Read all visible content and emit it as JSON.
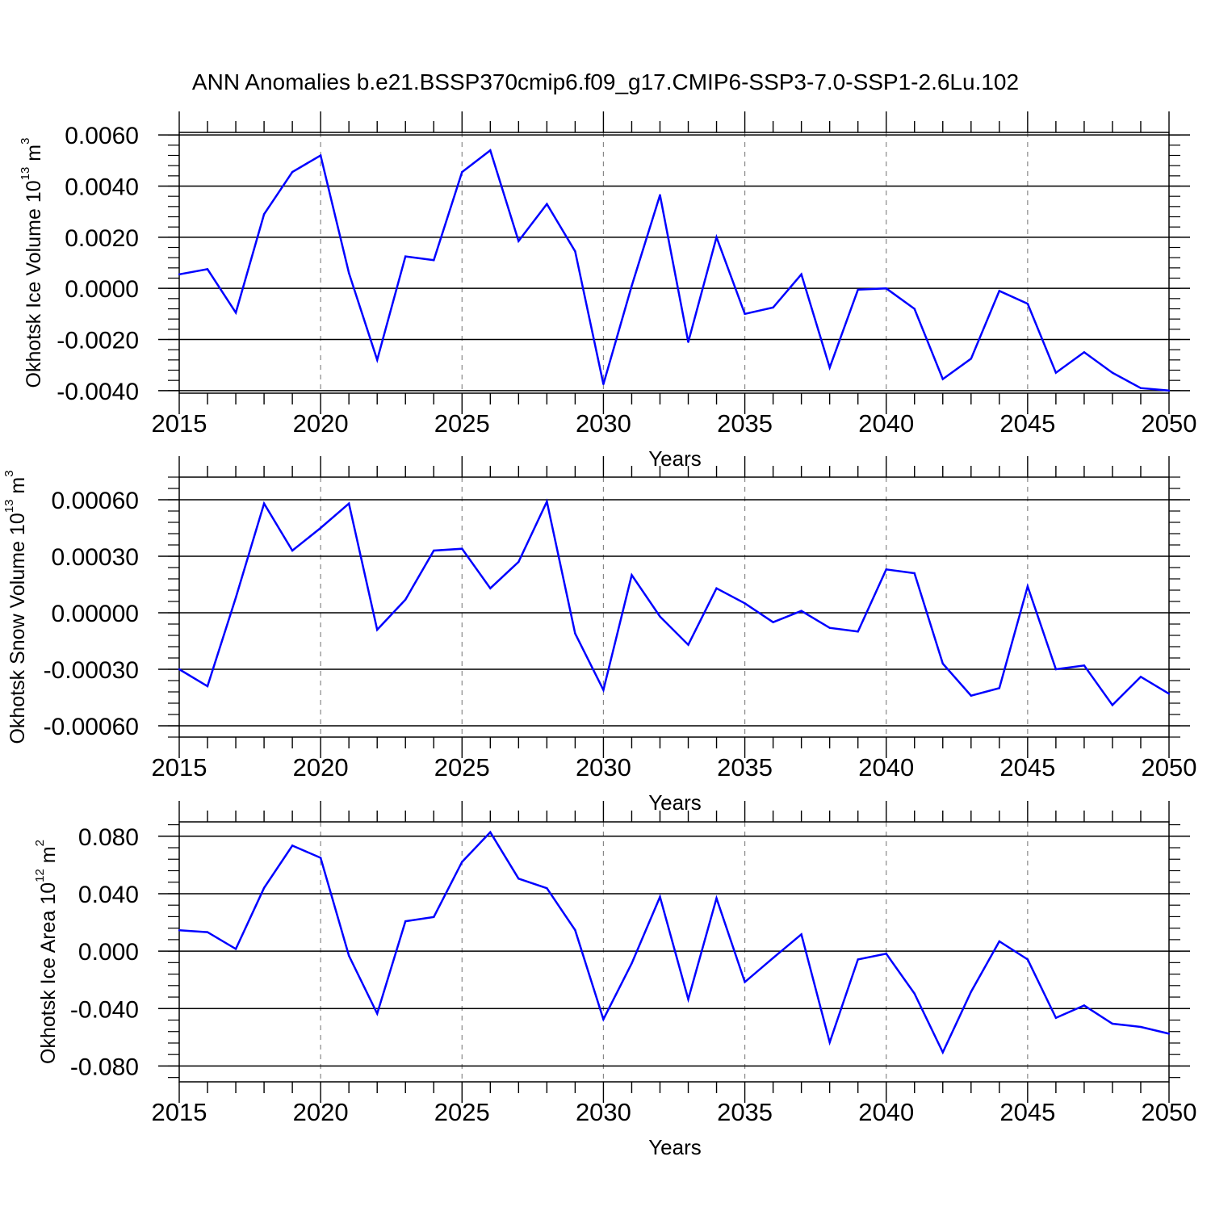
{
  "title": "ANN Anomalies b.e21.BSSP370cmip6.f09_g17.CMIP6-SSP3-7.0-SSP1-2.6Lu.102",
  "chart_data": [
    {
      "type": "line",
      "ylabel": "Okhotsk Ice Volume 10",
      "ylabel_exp": "13",
      "ylabel_unit": " m",
      "ylabel_unit_exp": "3",
      "xlabel": "Years",
      "xlim": [
        2015,
        2050
      ],
      "ylim": [
        -0.0041,
        0.0061
      ],
      "yticks": [
        0.006,
        0.004,
        0.002,
        0.0,
        -0.002,
        -0.004
      ],
      "ytick_labels": [
        "0.0060",
        "0.0040",
        "0.0020",
        "0.0000",
        "-0.0020",
        "-0.0040"
      ],
      "xticks": [
        2015,
        2020,
        2025,
        2030,
        2035,
        2040,
        2045,
        2050
      ],
      "xtick_labels": [
        "2015",
        "2020",
        "2025",
        "2030",
        "2035",
        "2040",
        "2045",
        "2050"
      ],
      "line_color": "#0000ff",
      "x": [
        2015,
        2016,
        2017,
        2018,
        2019,
        2020,
        2021,
        2022,
        2023,
        2024,
        2025,
        2026,
        2027,
        2028,
        2029,
        2030,
        2031,
        2032,
        2033,
        2034,
        2035,
        2036,
        2037,
        2038,
        2039,
        2040,
        2041,
        2042,
        2043,
        2044,
        2045,
        2046,
        2047,
        2048,
        2049,
        2050
      ],
      "values": [
        0.00055,
        0.00075,
        -0.00095,
        0.0029,
        0.00455,
        0.0052,
        0.0006,
        -0.0028,
        0.00125,
        0.0011,
        0.00455,
        0.0054,
        0.00185,
        0.0033,
        0.00145,
        -0.00375,
        0.0001,
        0.00365,
        -0.0021,
        0.002,
        -0.001,
        -0.00075,
        0.00055,
        -0.0031,
        -5e-05,
        0.0,
        -0.0008,
        -0.00355,
        -0.00275,
        -0.0001,
        -0.0006,
        -0.0033,
        -0.0025,
        -0.0033,
        -0.0039,
        -0.004
      ]
    },
    {
      "type": "line",
      "ylabel": "Okhotsk Snow Volume 10",
      "ylabel_exp": "13",
      "ylabel_unit": " m",
      "ylabel_unit_exp": "3",
      "xlabel": "Years",
      "xlim": [
        2015,
        2050
      ],
      "ylim": [
        -0.00066,
        0.00072
      ],
      "yticks": [
        0.0006,
        0.0003,
        0.0,
        -0.0003,
        -0.0006
      ],
      "ytick_labels": [
        "0.00060",
        "0.00030",
        "0.00000",
        "-0.00030",
        "-0.00060"
      ],
      "xticks": [
        2015,
        2020,
        2025,
        2030,
        2035,
        2040,
        2045,
        2050
      ],
      "xtick_labels": [
        "2015",
        "2020",
        "2025",
        "2030",
        "2035",
        "2040",
        "2045",
        "2050"
      ],
      "line_color": "#0000ff",
      "x": [
        2015,
        2016,
        2017,
        2018,
        2019,
        2020,
        2021,
        2022,
        2023,
        2024,
        2025,
        2026,
        2027,
        2028,
        2029,
        2030,
        2031,
        2032,
        2033,
        2034,
        2035,
        2036,
        2037,
        2038,
        2039,
        2040,
        2041,
        2042,
        2043,
        2044,
        2045,
        2046,
        2047,
        2048,
        2049,
        2050
      ],
      "values": [
        -0.0003,
        -0.00039,
        8e-05,
        0.00058,
        0.00033,
        0.00045,
        0.00058,
        -9e-05,
        7e-05,
        0.00033,
        0.00034,
        0.00013,
        0.00027,
        0.00059,
        -0.00011,
        -0.00041,
        0.0002,
        -2e-05,
        -0.00017,
        0.00013,
        5e-05,
        -5e-05,
        1e-05,
        -8e-05,
        -0.0001,
        0.00023,
        0.00021,
        -0.00027,
        -0.00044,
        -0.0004,
        0.00014,
        -0.0003,
        -0.00028,
        -0.00049,
        -0.00034,
        -0.00043
      ]
    },
    {
      "type": "line",
      "ylabel": "Okhotsk Ice Area 10",
      "ylabel_exp": "12",
      "ylabel_unit": " m",
      "ylabel_unit_exp": "2",
      "xlabel": "Years",
      "xlim": [
        2015,
        2050
      ],
      "ylim": [
        -0.091,
        0.09
      ],
      "yticks": [
        0.08,
        0.04,
        0.0,
        -0.04,
        -0.08
      ],
      "ytick_labels": [
        "0.080",
        "0.040",
        "0.000",
        "-0.040",
        "-0.080"
      ],
      "xticks": [
        2015,
        2020,
        2025,
        2030,
        2035,
        2040,
        2045,
        2050
      ],
      "xtick_labels": [
        "2015",
        "2020",
        "2025",
        "2030",
        "2035",
        "2040",
        "2045",
        "2050"
      ],
      "line_color": "#0000ff",
      "x": [
        2015,
        2016,
        2017,
        2018,
        2019,
        2020,
        2021,
        2022,
        2023,
        2024,
        2025,
        2026,
        2027,
        2028,
        2029,
        2030,
        2031,
        2032,
        2033,
        2034,
        2035,
        2036,
        2037,
        2038,
        2039,
        2040,
        2041,
        2042,
        2043,
        2044,
        2045,
        2046,
        2047,
        2048,
        2049,
        2050
      ],
      "values": [
        0.0145,
        0.0132,
        0.0015,
        0.044,
        0.0735,
        0.065,
        -0.0032,
        -0.0435,
        0.0208,
        0.0238,
        0.0621,
        0.0828,
        0.0505,
        0.0438,
        0.0146,
        -0.0475,
        -0.0085,
        0.0378,
        -0.0335,
        0.0368,
        -0.0215,
        -0.0048,
        0.0117,
        -0.0635,
        -0.0058,
        -0.0018,
        -0.0295,
        -0.0705,
        -0.0283,
        0.0068,
        -0.0058,
        -0.0465,
        -0.0378,
        -0.0505,
        -0.0528,
        -0.0575
      ]
    }
  ]
}
